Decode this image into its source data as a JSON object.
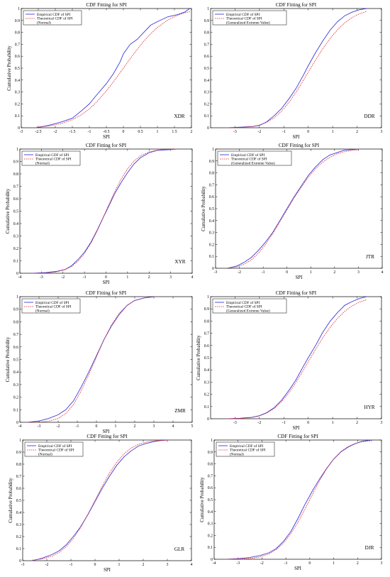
{
  "colors": {
    "empirical": "#3b3bd8",
    "theoretical": "#e0242b",
    "axes": "#000000",
    "background": "#ffffff"
  },
  "chart_data": [
    {
      "type": "line",
      "title": "CDF Fitting for SPI",
      "xlabel": "SPI",
      "ylabel": "Cumulative Probability",
      "annotation": "XDR",
      "xlim": [
        -3,
        2
      ],
      "ylim": [
        0,
        1
      ],
      "xticks": [
        "-3",
        "-2.5",
        "-2",
        "-1.5",
        "-1",
        "-0.5",
        "0",
        "0.5",
        "1",
        "1.5",
        "2"
      ],
      "yticks": [
        "0",
        "0.1",
        "0.2",
        "0.3",
        "0.4",
        "0.5",
        "0.6",
        "0.7",
        "0.8",
        "0.9",
        "1"
      ],
      "legend": {
        "position": "top-left",
        "entries": [
          "Empirical CDF of SPI",
          "Theoretical CDF of SPI",
          "(Normal)"
        ]
      },
      "series": [
        {
          "name": "Empirical CDF of SPI",
          "x": [
            -2.55,
            -2.2,
            -1.8,
            -1.5,
            -1.2,
            -1.0,
            -0.8,
            -0.5,
            -0.3,
            -0.1,
            0.0,
            0.2,
            0.4,
            0.6,
            0.8,
            1.0,
            1.3,
            1.6,
            1.8,
            1.95
          ],
          "y": [
            0.0,
            0.02,
            0.05,
            0.08,
            0.15,
            0.2,
            0.27,
            0.37,
            0.45,
            0.55,
            0.62,
            0.7,
            0.74,
            0.8,
            0.86,
            0.89,
            0.93,
            0.95,
            0.97,
            1.0
          ]
        },
        {
          "name": "Theoretical CDF of SPI (Normal)",
          "x": [
            -2.55,
            -2.2,
            -1.8,
            -1.5,
            -1.2,
            -1.0,
            -0.8,
            -0.5,
            -0.3,
            -0.1,
            0.0,
            0.2,
            0.4,
            0.6,
            0.8,
            1.0,
            1.3,
            1.6,
            1.8,
            1.95
          ],
          "y": [
            0.005,
            0.014,
            0.036,
            0.067,
            0.115,
            0.159,
            0.212,
            0.309,
            0.382,
            0.46,
            0.5,
            0.579,
            0.655,
            0.726,
            0.788,
            0.841,
            0.903,
            0.945,
            0.964,
            0.974
          ]
        }
      ]
    },
    {
      "type": "line",
      "title": "CDF Fitting for SPI",
      "xlabel": "SPI",
      "ylabel": "",
      "annotation": "DDR",
      "xlim": [
        -4,
        3
      ],
      "ylim": [
        0,
        1
      ],
      "xticks": [
        "-3",
        "-2",
        "-1",
        "0",
        "1",
        "2",
        "3"
      ],
      "yticks": [
        "0",
        "0.1",
        "0.2",
        "0.3",
        "0.4",
        "0.5",
        "0.6",
        "0.7",
        "0.8",
        "0.9",
        "1"
      ],
      "legend": {
        "position": "top-left",
        "entries": [
          "Empirical CDF of SPI",
          "Theoretical CDF of SPI",
          "(Generalized Extreme Value)"
        ]
      },
      "series": [
        {
          "name": "Empirical CDF of SPI",
          "x": [
            -3.3,
            -2.8,
            -2.3,
            -2.0,
            -1.7,
            -1.4,
            -1.1,
            -0.8,
            -0.5,
            -0.2,
            0.0,
            0.3,
            0.6,
            0.9,
            1.2,
            1.5,
            1.8,
            2.1,
            2.4
          ],
          "y": [
            0.0,
            0.005,
            0.01,
            0.02,
            0.05,
            0.1,
            0.16,
            0.24,
            0.33,
            0.44,
            0.52,
            0.63,
            0.73,
            0.82,
            0.89,
            0.94,
            0.97,
            0.99,
            1.0
          ]
        },
        {
          "name": "Theoretical CDF of SPI (Generalized Extreme Value)",
          "x": [
            -3.3,
            -2.8,
            -2.3,
            -2.0,
            -1.7,
            -1.4,
            -1.1,
            -0.8,
            -0.5,
            -0.2,
            0.0,
            0.3,
            0.6,
            0.9,
            1.2,
            1.5,
            1.8,
            2.1,
            2.4
          ],
          "y": [
            0.0,
            0.002,
            0.01,
            0.023,
            0.046,
            0.083,
            0.138,
            0.21,
            0.298,
            0.398,
            0.467,
            0.568,
            0.664,
            0.75,
            0.823,
            0.881,
            0.925,
            0.956,
            0.976
          ]
        }
      ]
    },
    {
      "type": "line",
      "title": "CDF Fitting for SPI",
      "xlabel": "SPI",
      "ylabel": "Cumulative Probability",
      "annotation": "XYR",
      "xlim": [
        -4,
        4
      ],
      "ylim": [
        0,
        1
      ],
      "xticks": [
        "-4",
        "-3",
        "-2",
        "-1",
        "0",
        "1",
        "2",
        "3",
        "4"
      ],
      "yticks": [
        "0",
        "0.1",
        "0.2",
        "0.3",
        "0.4",
        "0.5",
        "0.6",
        "0.7",
        "0.8",
        "0.9",
        "1"
      ],
      "legend": {
        "position": "top-left",
        "entries": [
          "Empirical CDF of SPI",
          "Theoretical CDF of SPI",
          "(Normal)"
        ]
      },
      "series": [
        {
          "name": "Empirical CDF of SPI",
          "x": [
            -3.4,
            -2.8,
            -2.3,
            -1.9,
            -1.6,
            -1.3,
            -1.0,
            -0.7,
            -0.4,
            -0.1,
            0.1,
            0.4,
            0.7,
            1.0,
            1.3,
            1.6,
            2.0,
            2.4,
            2.9,
            3.3
          ],
          "y": [
            0.0,
            0.005,
            0.015,
            0.03,
            0.06,
            0.11,
            0.17,
            0.25,
            0.35,
            0.46,
            0.53,
            0.64,
            0.73,
            0.81,
            0.88,
            0.93,
            0.97,
            0.99,
            0.995,
            1.0
          ]
        },
        {
          "name": "Theoretical CDF of SPI (Normal)",
          "x": [
            -3.4,
            -2.8,
            -2.3,
            -1.9,
            -1.6,
            -1.3,
            -1.0,
            -0.7,
            -0.4,
            -0.1,
            0.1,
            0.4,
            0.7,
            1.0,
            1.3,
            1.6,
            2.0,
            2.4,
            2.9,
            3.3
          ],
          "y": [
            0.0,
            0.003,
            0.011,
            0.029,
            0.055,
            0.097,
            0.159,
            0.242,
            0.345,
            0.46,
            0.54,
            0.655,
            0.758,
            0.841,
            0.903,
            0.945,
            0.977,
            0.992,
            0.998,
            1.0
          ]
        }
      ]
    },
    {
      "type": "line",
      "title": "CDF Fitting for SPI",
      "xlabel": "SPI",
      "ylabel": "Cumulative Probability",
      "annotation": "JTR",
      "xlim": [
        -3,
        4
      ],
      "ylim": [
        0,
        1
      ],
      "xticks": [
        "-3",
        "-2",
        "-1",
        "0",
        "1",
        "2",
        "3",
        "4"
      ],
      "yticks": [
        "0",
        "0.1",
        "0.2",
        "0.3",
        "0.4",
        "0.5",
        "0.6",
        "0.7",
        "0.8",
        "0.9",
        "1"
      ],
      "legend": {
        "position": "top-left",
        "entries": [
          "Empirical CDF of SPI",
          "Theoretical CDF of SPI",
          "(Generalized Extreme Value)"
        ]
      },
      "series": [
        {
          "name": "Empirical CDF of SPI",
          "x": [
            -2.5,
            -2.1,
            -1.8,
            -1.5,
            -1.2,
            -0.9,
            -0.6,
            -0.3,
            0.0,
            0.3,
            0.6,
            0.9,
            1.2,
            1.5,
            1.8,
            2.1,
            2.4,
            2.7,
            3.0
          ],
          "y": [
            0.0,
            0.02,
            0.05,
            0.09,
            0.15,
            0.22,
            0.3,
            0.4,
            0.5,
            0.6,
            0.69,
            0.78,
            0.85,
            0.91,
            0.95,
            0.97,
            0.99,
            0.995,
            1.0
          ]
        },
        {
          "name": "Theoretical CDF of SPI (Generalized Extreme Value)",
          "x": [
            -2.5,
            -2.1,
            -1.8,
            -1.5,
            -1.2,
            -0.9,
            -0.6,
            -0.3,
            0.0,
            0.3,
            0.6,
            0.9,
            1.2,
            1.5,
            1.8,
            2.1,
            2.4,
            2.7,
            3.0
          ],
          "y": [
            0.002,
            0.012,
            0.033,
            0.07,
            0.126,
            0.2,
            0.29,
            0.39,
            0.49,
            0.59,
            0.68,
            0.765,
            0.835,
            0.89,
            0.93,
            0.96,
            0.977,
            0.988,
            0.994
          ]
        }
      ]
    },
    {
      "type": "line",
      "title": "CDF Fitting for SPI",
      "xlabel": "SPI",
      "ylabel": "Cumulative Probability",
      "annotation": "ZMR",
      "xlim": [
        -4,
        5
      ],
      "ylim": [
        0,
        1
      ],
      "xticks": [
        "-4",
        "-3",
        "-2",
        "-1",
        "0",
        "1",
        "2",
        "3",
        "4",
        "5"
      ],
      "yticks": [
        "0",
        "0.1",
        "0.2",
        "0.3",
        "0.4",
        "0.5",
        "0.6",
        "0.7",
        "0.8",
        "0.9",
        "1"
      ],
      "legend": {
        "position": "top-left",
        "entries": [
          "Empirical CDF of SPI",
          "Theoretical CDF of SPI",
          "(Normal)"
        ]
      },
      "series": [
        {
          "name": "Empirical CDF of SPI",
          "x": [
            -3.6,
            -3.0,
            -2.5,
            -2.0,
            -1.6,
            -1.2,
            -0.8,
            -0.4,
            0.0,
            0.4,
            0.8,
            1.2,
            1.6,
            2.0,
            2.5,
            3.0
          ],
          "y": [
            0.0,
            0.01,
            0.03,
            0.06,
            0.1,
            0.17,
            0.28,
            0.4,
            0.53,
            0.66,
            0.77,
            0.86,
            0.93,
            0.97,
            0.99,
            1.0
          ]
        },
        {
          "name": "Theoretical CDF of SPI (Normal)",
          "x": [
            -3.6,
            -3.0,
            -2.5,
            -2.0,
            -1.6,
            -1.2,
            -0.8,
            -0.4,
            0.0,
            0.4,
            0.8,
            1.2,
            1.6,
            2.0,
            2.5,
            3.0
          ],
          "y": [
            0.0,
            0.002,
            0.008,
            0.03,
            0.07,
            0.14,
            0.25,
            0.38,
            0.52,
            0.66,
            0.78,
            0.87,
            0.93,
            0.97,
            0.99,
            0.998
          ]
        }
      ]
    },
    {
      "type": "line",
      "title": "CDF Fitting for SPI",
      "xlabel": "SPI",
      "ylabel": "Cumulative Probability",
      "annotation": "HYR",
      "xlim": [
        -4,
        3
      ],
      "ylim": [
        0,
        1
      ],
      "xticks": [
        "-3",
        "-2",
        "-1",
        "0",
        "1",
        "2",
        "3"
      ],
      "yticks": [
        "0",
        "0.1",
        "0.2",
        "0.3",
        "0.4",
        "0.5",
        "0.6",
        "0.7",
        "0.8",
        "0.9",
        "1"
      ],
      "legend": {
        "position": "top-left",
        "entries": [
          "Empirical CDF of SPI",
          "Theoretical CDF of SPI",
          "(Generalized Extreme Value)"
        ]
      },
      "series": [
        {
          "name": "Empirical CDF of SPI",
          "x": [
            -3.3,
            -2.8,
            -2.3,
            -2.0,
            -1.7,
            -1.4,
            -1.1,
            -0.8,
            -0.5,
            -0.2,
            0.0,
            0.3,
            0.6,
            0.9,
            1.2,
            1.5,
            1.8,
            2.1,
            2.4
          ],
          "y": [
            0.0,
            0.004,
            0.012,
            0.025,
            0.05,
            0.09,
            0.15,
            0.23,
            0.32,
            0.43,
            0.5,
            0.6,
            0.71,
            0.8,
            0.87,
            0.93,
            0.96,
            0.985,
            1.0
          ]
        },
        {
          "name": "Theoretical CDF of SPI (Generalized Extreme Value)",
          "x": [
            -3.3,
            -2.8,
            -2.3,
            -2.0,
            -1.7,
            -1.4,
            -1.1,
            -0.8,
            -0.5,
            -0.2,
            0.0,
            0.3,
            0.6,
            0.9,
            1.2,
            1.5,
            1.8,
            2.1,
            2.4
          ],
          "y": [
            0.0,
            0.002,
            0.01,
            0.023,
            0.046,
            0.083,
            0.138,
            0.21,
            0.298,
            0.398,
            0.467,
            0.568,
            0.664,
            0.75,
            0.823,
            0.881,
            0.925,
            0.956,
            0.976
          ]
        }
      ]
    },
    {
      "type": "line",
      "title": "CDF Fitting for SPI",
      "xlabel": "SPI",
      "ylabel": "Cumulative Probability",
      "annotation": "GLR",
      "xlim": [
        -3,
        4
      ],
      "ylim": [
        0,
        1
      ],
      "xticks": [
        "-3",
        "-2",
        "-1",
        "0",
        "1",
        "2",
        "3",
        "4"
      ],
      "yticks": [
        "0",
        "0.1",
        "0.2",
        "0.3",
        "0.4",
        "0.5",
        "0.6",
        "0.7",
        "0.8",
        "0.9",
        "1"
      ],
      "legend": {
        "position": "top-left",
        "entries": [
          "Empirical CDF of SPI",
          "Theoretical CDF of SPI",
          "(Normal)"
        ]
      },
      "series": [
        {
          "name": "Empirical CDF of SPI",
          "x": [
            -2.6,
            -2.2,
            -1.8,
            -1.5,
            -1.2,
            -0.9,
            -0.6,
            -0.3,
            0.0,
            0.3,
            0.6,
            0.9,
            1.2,
            1.5,
            1.8,
            2.1,
            2.4,
            2.7,
            3.0
          ],
          "y": [
            0.0,
            0.02,
            0.05,
            0.08,
            0.13,
            0.2,
            0.28,
            0.38,
            0.49,
            0.6,
            0.7,
            0.79,
            0.86,
            0.91,
            0.95,
            0.97,
            0.985,
            0.995,
            1.0
          ]
        },
        {
          "name": "Theoretical CDF of SPI (Normal)",
          "x": [
            -2.6,
            -2.2,
            -1.8,
            -1.5,
            -1.2,
            -0.9,
            -0.6,
            -0.3,
            0.0,
            0.3,
            0.6,
            0.9,
            1.2,
            1.5,
            1.8,
            2.1,
            2.4,
            2.7,
            3.0
          ],
          "y": [
            0.005,
            0.014,
            0.036,
            0.067,
            0.115,
            0.184,
            0.274,
            0.382,
            0.5,
            0.618,
            0.726,
            0.816,
            0.885,
            0.933,
            0.964,
            0.982,
            0.992,
            0.997,
            0.999
          ]
        }
      ]
    },
    {
      "type": "line",
      "title": "CDF Fitting for SPI",
      "xlabel": "SPI",
      "ylabel": "Cumulative Probability",
      "annotation": "DJR",
      "xlim": [
        -4,
        3
      ],
      "ylim": [
        0,
        1
      ],
      "xticks": [
        "-4",
        "-3",
        "-2",
        "-1",
        "0",
        "1",
        "2",
        "3"
      ],
      "yticks": [
        "0",
        "0.1",
        "0.2",
        "0.3",
        "0.4",
        "0.5",
        "0.6",
        "0.7",
        "0.8",
        "0.9",
        "1"
      ],
      "legend": {
        "position": "top-left",
        "entries": [
          "Empirical CDF of SPI",
          "Theoretical CDF of SPI",
          "(Normal)"
        ]
      },
      "series": [
        {
          "name": "Empirical CDF of SPI",
          "x": [
            -3.5,
            -3.0,
            -2.5,
            -2.1,
            -1.7,
            -1.4,
            -1.1,
            -0.8,
            -0.5,
            -0.2,
            0.1,
            0.4,
            0.7,
            1.0,
            1.3,
            1.6,
            1.9,
            2.2,
            2.6
          ],
          "y": [
            0.0,
            0.005,
            0.015,
            0.03,
            0.055,
            0.09,
            0.15,
            0.23,
            0.34,
            0.46,
            0.57,
            0.67,
            0.76,
            0.84,
            0.9,
            0.94,
            0.97,
            0.99,
            1.0
          ]
        },
        {
          "name": "Theoretical CDF of SPI (Normal)",
          "x": [
            -3.5,
            -3.0,
            -2.5,
            -2.1,
            -1.7,
            -1.4,
            -1.1,
            -0.8,
            -0.5,
            -0.2,
            0.1,
            0.4,
            0.7,
            1.0,
            1.3,
            1.6,
            1.9,
            2.2,
            2.6
          ],
          "y": [
            0.0,
            0.001,
            0.006,
            0.018,
            0.045,
            0.081,
            0.136,
            0.212,
            0.309,
            0.421,
            0.54,
            0.655,
            0.758,
            0.841,
            0.903,
            0.945,
            0.971,
            0.986,
            0.995
          ]
        }
      ]
    }
  ]
}
